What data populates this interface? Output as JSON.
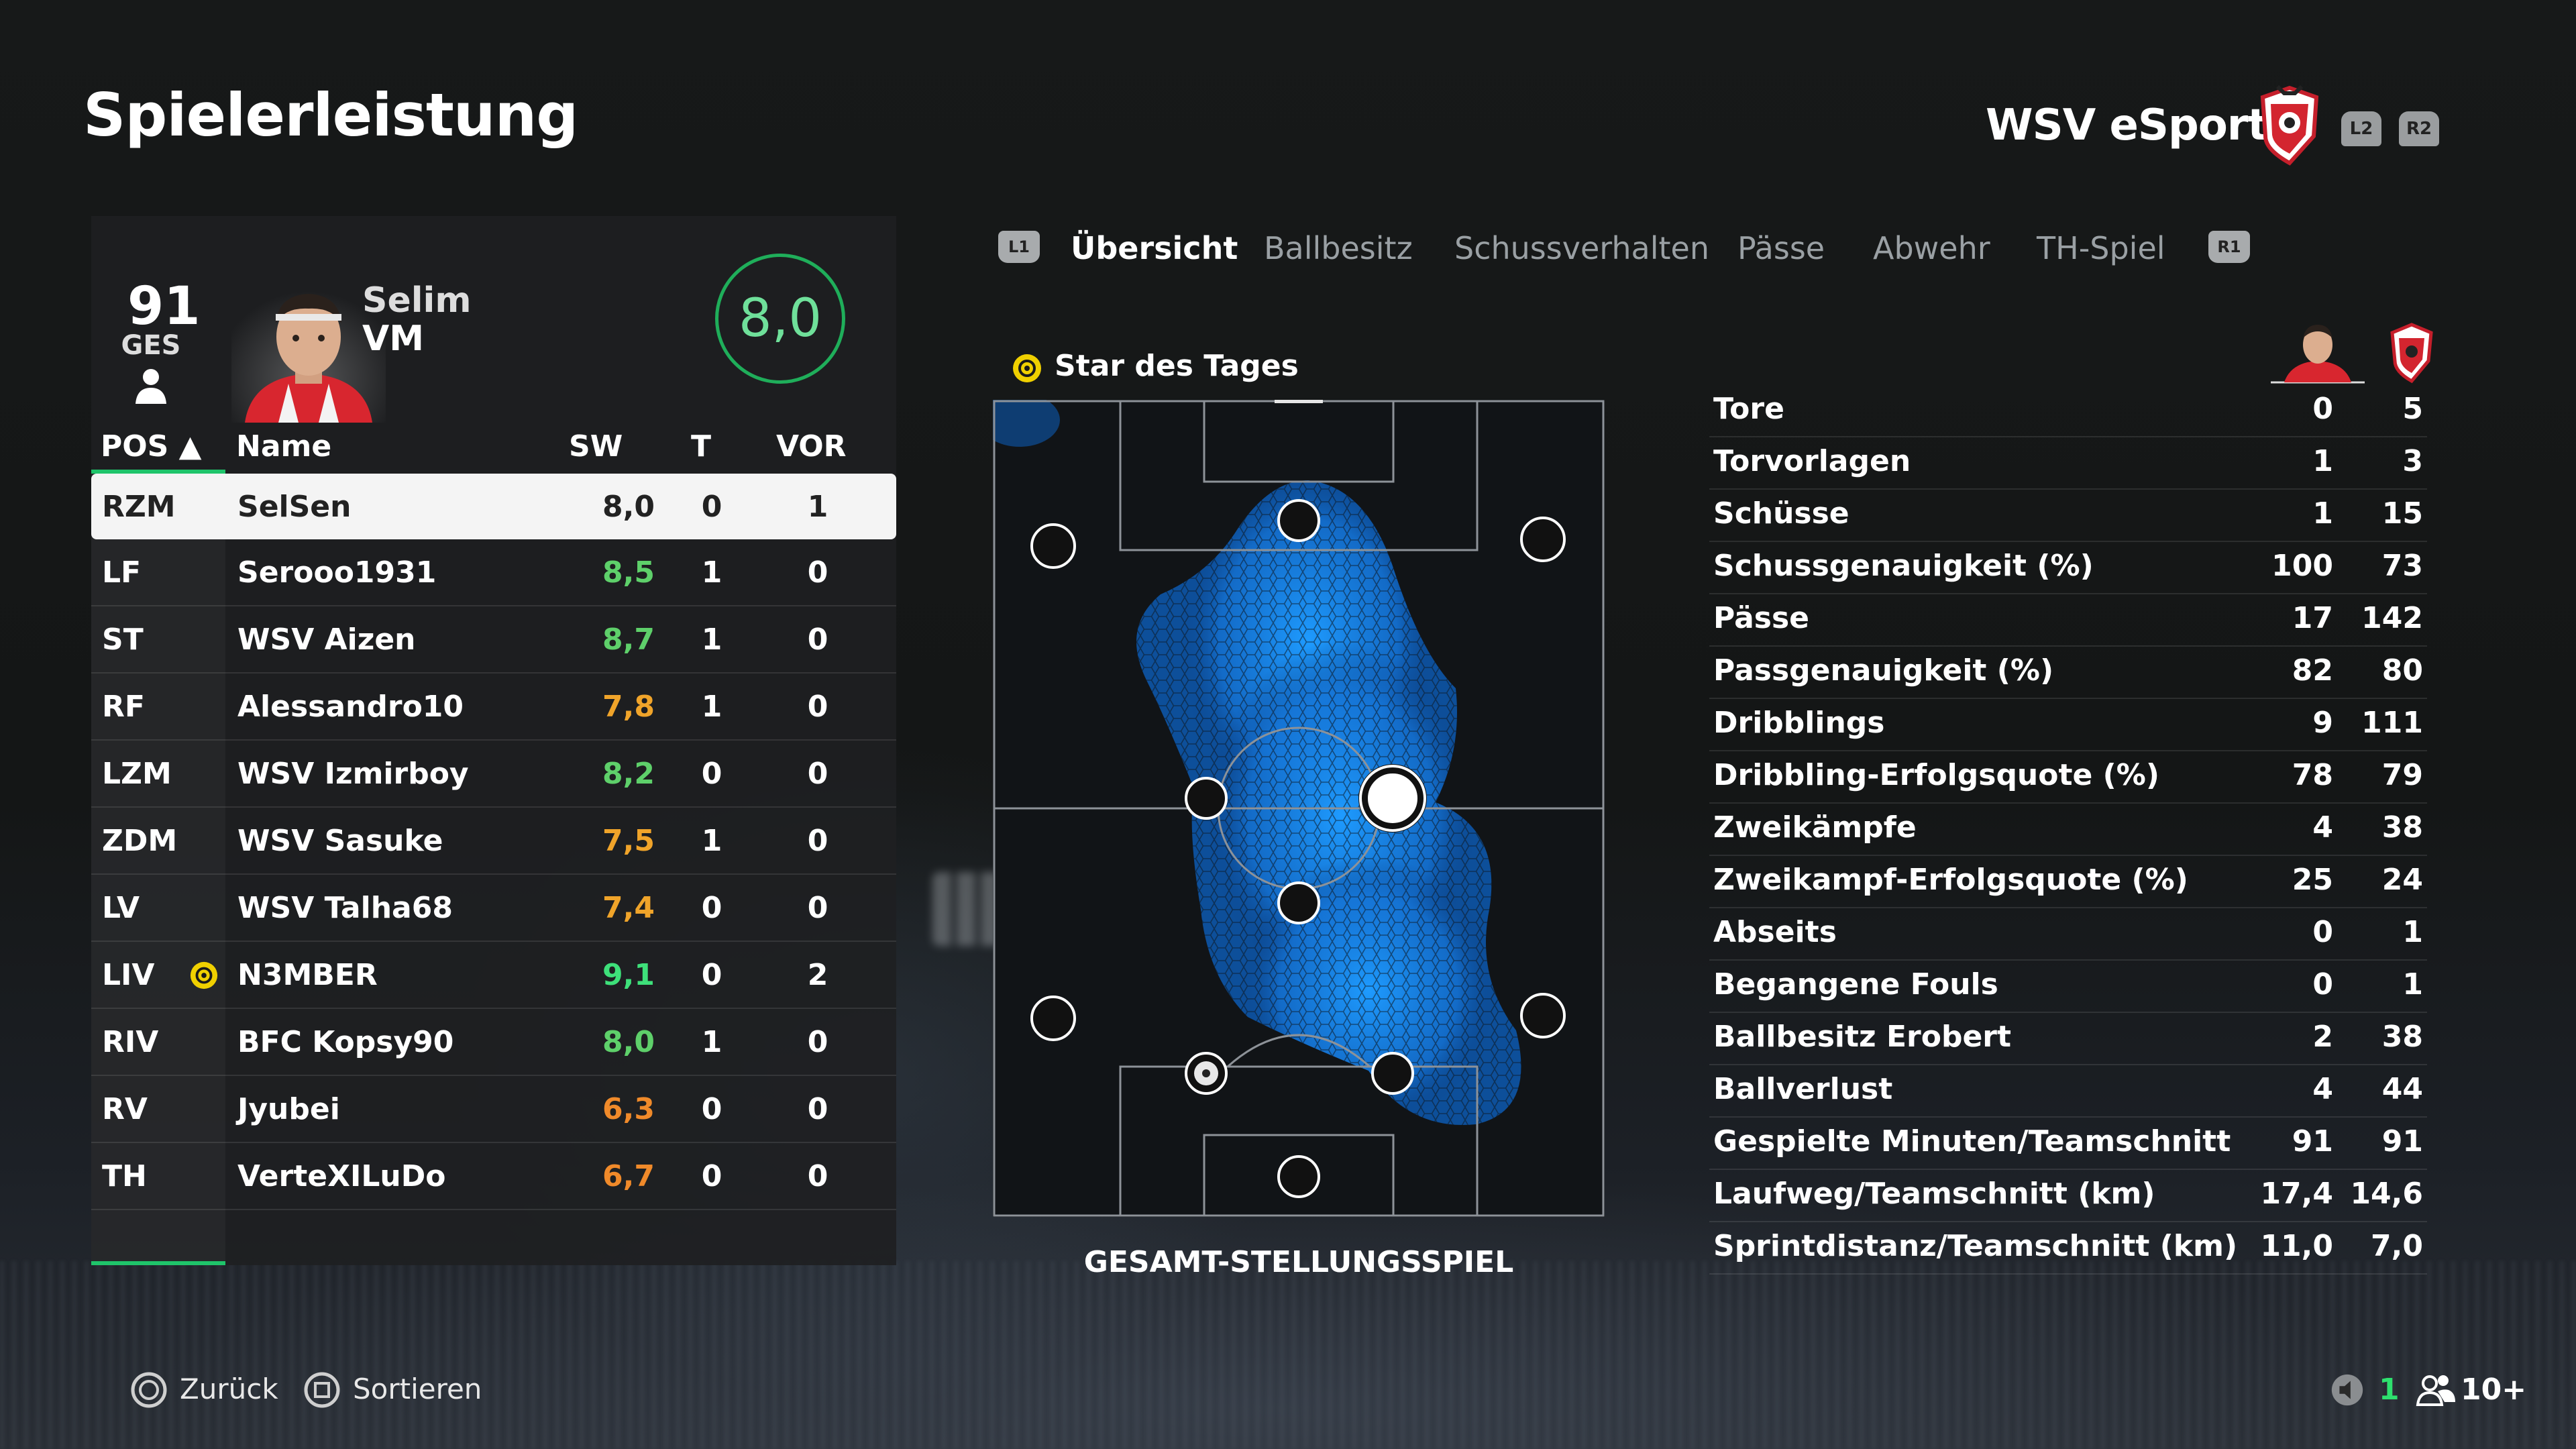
{
  "header": {
    "title": "Spielerleistung",
    "team": "WSV eSports",
    "trigger_left": "L2",
    "trigger_right": "R2"
  },
  "player": {
    "overall": "91",
    "overall_label": "GES",
    "first_name": "Selim",
    "position": "VM",
    "rating": "8,0"
  },
  "table": {
    "headers": {
      "pos": "POS ▲",
      "name": "Name",
      "sw": "SW",
      "t": "T",
      "vor": "VOR"
    },
    "rows": [
      {
        "pos": "RZM",
        "name": "SelSen",
        "sw": "8,0",
        "t": "0",
        "vor": "1",
        "sw_color": "#222222",
        "star": false,
        "selected": true
      },
      {
        "pos": "LF",
        "name": "Serooo1931",
        "sw": "8,5",
        "t": "1",
        "vor": "0",
        "sw_color": "#5ed06a",
        "star": false
      },
      {
        "pos": "ST",
        "name": "WSV Aizen",
        "sw": "8,7",
        "t": "1",
        "vor": "0",
        "sw_color": "#5ed06a",
        "star": false
      },
      {
        "pos": "RF",
        "name": "Alessandro10",
        "sw": "7,8",
        "t": "1",
        "vor": "0",
        "sw_color": "#f0a42a",
        "star": false
      },
      {
        "pos": "LZM",
        "name": "WSV Izmirboy",
        "sw": "8,2",
        "t": "0",
        "vor": "0",
        "sw_color": "#5ed06a",
        "star": false
      },
      {
        "pos": "ZDM",
        "name": "WSV Sasuke",
        "sw": "7,5",
        "t": "1",
        "vor": "0",
        "sw_color": "#f0a42a",
        "star": false
      },
      {
        "pos": "LV",
        "name": "WSV Talha68",
        "sw": "7,4",
        "t": "0",
        "vor": "0",
        "sw_color": "#f0a42a",
        "star": false
      },
      {
        "pos": "LIV",
        "name": "N3MBER",
        "sw": "9,1",
        "t": "0",
        "vor": "2",
        "sw_color": "#3ee07a",
        "star": true
      },
      {
        "pos": "RIV",
        "name": "BFC Kopsy90",
        "sw": "8,0",
        "t": "1",
        "vor": "0",
        "sw_color": "#5ed06a",
        "star": false
      },
      {
        "pos": "RV",
        "name": "Jyubei",
        "sw": "6,3",
        "t": "0",
        "vor": "0",
        "sw_color": "#f08a2a",
        "star": false
      },
      {
        "pos": "TH",
        "name": "VerteXILuDo",
        "sw": "6,7",
        "t": "0",
        "vor": "0",
        "sw_color": "#f08a2a",
        "star": false
      }
    ]
  },
  "tabs": {
    "left_button": "L1",
    "right_button": "R1",
    "items": [
      "Übersicht",
      "Ballbesitz",
      "Schussverhalten",
      "Pässe",
      "Abwehr",
      "TH-Spiel"
    ]
  },
  "star_of_day": "Star des Tages",
  "pitch_caption": "GESAMT-STELLUNGSSPIEL",
  "stats": [
    {
      "label": "Tore",
      "player": "0",
      "team": "5"
    },
    {
      "label": "Torvorlagen",
      "player": "1",
      "team": "3"
    },
    {
      "label": "Schüsse",
      "player": "1",
      "team": "15"
    },
    {
      "label": "Schussgenauigkeit (%)",
      "player": "100",
      "team": "73"
    },
    {
      "label": "Pässe",
      "player": "17",
      "team": "142"
    },
    {
      "label": "Passgenauigkeit (%)",
      "player": "82",
      "team": "80"
    },
    {
      "label": "Dribblings",
      "player": "9",
      "team": "111"
    },
    {
      "label": "Dribbling-Erfolgsquote (%)",
      "player": "78",
      "team": "79"
    },
    {
      "label": "Zweikämpfe",
      "player": "4",
      "team": "38"
    },
    {
      "label": "Zweikampf-Erfolgsquote (%)",
      "player": "25",
      "team": "24"
    },
    {
      "label": "Abseits",
      "player": "0",
      "team": "1"
    },
    {
      "label": "Begangene Fouls",
      "player": "0",
      "team": "1"
    },
    {
      "label": "Ballbesitz Erobert",
      "player": "2",
      "team": "38"
    },
    {
      "label": "Ballverlust",
      "player": "4",
      "team": "44"
    },
    {
      "label": "Gespielte Minuten/Teamschnitt",
      "player": "91",
      "team": "91"
    },
    {
      "label": "Laufweg/Teamschnitt (km)",
      "player": "17,4",
      "team": "14,6"
    },
    {
      "label": "Sprintdistanz/Teamschnitt (km)",
      "player": "11,0",
      "team": "7,0"
    }
  ],
  "footer": {
    "back": "Zurück",
    "sort": "Sortieren",
    "voice_count": "1",
    "players_count": "10+"
  },
  "colors": {
    "accent_green": "#1fc46a",
    "heat_blue": "#1a8ff0"
  }
}
